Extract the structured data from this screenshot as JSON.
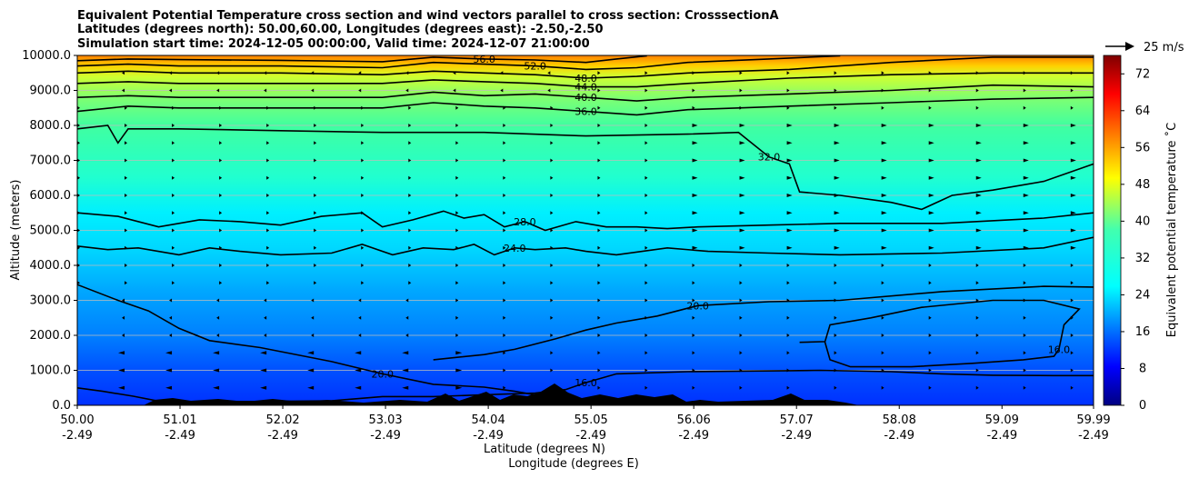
{
  "chart_data": {
    "type": "contourf",
    "title_lines": [
      "Equivalent Potential Temperature cross section and wind vectors parallel to cross section: CrosssectionA",
      "Latitudes (degrees north): 50.00,60.00, Longitudes (degrees east): -2.50,-2.50",
      "Simulation start time: 2024-12-05 00:00:00, Valid time: 2024-12-07 21:00:00"
    ],
    "ylabel": "Altitude (meters)",
    "xlabel_lines": [
      "Latitude (degrees N)",
      "Longitude (degrees E)"
    ],
    "ylim": [
      0,
      10000
    ],
    "xlim": [
      50.0,
      59.99
    ],
    "y_ticks": [
      {
        "value": 0,
        "label": "0.0"
      },
      {
        "value": 1000,
        "label": "1000.0"
      },
      {
        "value": 2000,
        "label": "2000.0"
      },
      {
        "value": 3000,
        "label": "3000.0"
      },
      {
        "value": 4000,
        "label": "4000.0"
      },
      {
        "value": 5000,
        "label": "5000.0"
      },
      {
        "value": 6000,
        "label": "6000.0"
      },
      {
        "value": 7000,
        "label": "7000.0"
      },
      {
        "value": 8000,
        "label": "8000.0"
      },
      {
        "value": 9000,
        "label": "9000.0"
      },
      {
        "value": 10000,
        "label": "10000.0"
      }
    ],
    "x_ticks": [
      {
        "lat": 50.0,
        "lat_label": "50.00",
        "lon_label": "-2.49"
      },
      {
        "lat": 51.01,
        "lat_label": "51.01",
        "lon_label": "-2.49"
      },
      {
        "lat": 52.02,
        "lat_label": "52.02",
        "lon_label": "-2.49"
      },
      {
        "lat": 53.03,
        "lat_label": "53.03",
        "lon_label": "-2.49"
      },
      {
        "lat": 54.04,
        "lat_label": "54.04",
        "lon_label": "-2.49"
      },
      {
        "lat": 55.05,
        "lat_label": "55.05",
        "lon_label": "-2.49"
      },
      {
        "lat": 56.06,
        "lat_label": "56.06",
        "lon_label": "-2.49"
      },
      {
        "lat": 57.07,
        "lat_label": "57.07",
        "lon_label": "-2.49"
      },
      {
        "lat": 58.08,
        "lat_label": "58.08",
        "lon_label": "-2.49"
      },
      {
        "lat": 59.09,
        "lat_label": "59.09",
        "lon_label": "-2.49"
      },
      {
        "lat": 59.99,
        "lat_label": "59.99",
        "lon_label": "-2.49"
      }
    ],
    "grid": "horizontal",
    "colorbar": {
      "label": "Equivalent potential temperature ˚C",
      "min": 0,
      "max": 76,
      "ticks": [
        0,
        8,
        16,
        24,
        32,
        40,
        48,
        56,
        64,
        72
      ],
      "colormap": "jet"
    },
    "quiver_key": {
      "label": "25 m/s"
    },
    "contours": [
      {
        "level": 16,
        "label": "16.0",
        "points": [
          [
            50.0,
            500
          ],
          [
            50.25,
            400
          ],
          [
            50.55,
            260
          ],
          [
            50.8,
            120
          ],
          [
            51.2,
            100
          ],
          [
            51.8,
            110
          ],
          [
            52.5,
            130
          ],
          [
            53.0,
            250
          ],
          [
            53.5,
            250
          ],
          [
            54.0,
            300
          ],
          [
            54.5,
            350
          ],
          [
            54.8,
            450
          ],
          [
            55.0,
            650
          ],
          [
            55.3,
            900
          ],
          [
            56.0,
            960
          ],
          [
            57.0,
            990
          ],
          [
            57.3,
            1000
          ],
          [
            58.0,
            960
          ],
          [
            58.5,
            900
          ],
          [
            59.0,
            860
          ],
          [
            59.6,
            850
          ],
          [
            59.99,
            850
          ]
        ]
      },
      {
        "level": 16,
        "label": "16.0",
        "points": [
          [
            57.1,
            1800
          ],
          [
            57.35,
            1820
          ],
          [
            57.4,
            2300
          ],
          [
            57.8,
            2500
          ],
          [
            58.3,
            2800
          ],
          [
            59.0,
            3000
          ],
          [
            59.5,
            3000
          ],
          [
            59.85,
            2750
          ],
          [
            59.7,
            2300
          ],
          [
            59.65,
            1600
          ],
          [
            59.6,
            1400
          ],
          [
            59.3,
            1300
          ],
          [
            58.8,
            1200
          ],
          [
            58.2,
            1100
          ],
          [
            57.6,
            1100
          ],
          [
            57.4,
            1300
          ],
          [
            57.35,
            1800
          ]
        ]
      },
      {
        "level": 20,
        "label": "20.0",
        "points": [
          [
            50.0,
            3450
          ],
          [
            50.4,
            3000
          ],
          [
            50.7,
            2700
          ],
          [
            51.0,
            2200
          ],
          [
            51.3,
            1850
          ],
          [
            51.8,
            1650
          ],
          [
            52.5,
            1250
          ],
          [
            53.0,
            900
          ],
          [
            53.5,
            600
          ],
          [
            54.0,
            520
          ],
          [
            54.3,
            400
          ],
          [
            54.6,
            250
          ],
          [
            54.9,
            80
          ]
        ]
      },
      {
        "level": 20,
        "label": "20.0",
        "points": [
          [
            53.5,
            1300
          ],
          [
            54.0,
            1450
          ],
          [
            54.3,
            1600
          ],
          [
            54.7,
            1900
          ],
          [
            55.0,
            2150
          ],
          [
            55.3,
            2350
          ],
          [
            55.7,
            2550
          ],
          [
            56.1,
            2850
          ],
          [
            56.8,
            2960
          ],
          [
            57.5,
            3000
          ],
          [
            58.5,
            3250
          ],
          [
            59.5,
            3400
          ],
          [
            59.99,
            3380
          ]
        ]
      },
      {
        "level": 24,
        "label": "24.0",
        "points": [
          [
            50.0,
            4550
          ],
          [
            50.3,
            4450
          ],
          [
            50.6,
            4500
          ],
          [
            51.0,
            4300
          ],
          [
            51.3,
            4500
          ],
          [
            51.6,
            4400
          ],
          [
            52.0,
            4300
          ],
          [
            52.5,
            4350
          ],
          [
            52.8,
            4600
          ],
          [
            53.1,
            4300
          ],
          [
            53.4,
            4500
          ],
          [
            53.7,
            4450
          ],
          [
            53.9,
            4600
          ],
          [
            54.1,
            4300
          ],
          [
            54.3,
            4500
          ],
          [
            54.5,
            4450
          ],
          [
            54.8,
            4500
          ],
          [
            55.0,
            4400
          ],
          [
            55.3,
            4300
          ],
          [
            55.8,
            4500
          ],
          [
            56.2,
            4400
          ],
          [
            56.8,
            4350
          ],
          [
            57.5,
            4300
          ],
          [
            58.5,
            4350
          ],
          [
            59.5,
            4500
          ],
          [
            59.99,
            4800
          ]
        ]
      },
      {
        "level": 28,
        "label": "28.0",
        "points": [
          [
            50.0,
            5500
          ],
          [
            50.4,
            5400
          ],
          [
            50.8,
            5100
          ],
          [
            51.2,
            5300
          ],
          [
            51.6,
            5250
          ],
          [
            52.0,
            5150
          ],
          [
            52.4,
            5400
          ],
          [
            52.8,
            5500
          ],
          [
            53.0,
            5100
          ],
          [
            53.3,
            5300
          ],
          [
            53.6,
            5550
          ],
          [
            53.8,
            5350
          ],
          [
            54.0,
            5450
          ],
          [
            54.2,
            5100
          ],
          [
            54.4,
            5250
          ],
          [
            54.6,
            5000
          ],
          [
            54.9,
            5250
          ],
          [
            55.2,
            5100
          ],
          [
            55.5,
            5100
          ],
          [
            55.8,
            5050
          ],
          [
            56.1,
            5100
          ],
          [
            56.8,
            5150
          ],
          [
            57.5,
            5200
          ],
          [
            58.5,
            5200
          ],
          [
            59.5,
            5350
          ],
          [
            59.99,
            5500
          ]
        ]
      },
      {
        "level": 32,
        "label": "32.0",
        "points": [
          [
            50.0,
            7900
          ],
          [
            50.3,
            8000
          ],
          [
            50.4,
            7500
          ],
          [
            50.5,
            7900
          ],
          [
            51.0,
            7900
          ],
          [
            52.0,
            7850
          ],
          [
            53.0,
            7800
          ],
          [
            54.0,
            7800
          ],
          [
            55.0,
            7700
          ],
          [
            56.0,
            7750
          ],
          [
            56.5,
            7800
          ],
          [
            56.8,
            7100
          ],
          [
            57.0,
            6900
          ],
          [
            57.1,
            6100
          ],
          [
            57.5,
            6000
          ],
          [
            58.0,
            5800
          ],
          [
            58.3,
            5600
          ],
          [
            58.6,
            6000
          ],
          [
            59.0,
            6150
          ],
          [
            59.5,
            6400
          ],
          [
            59.99,
            6900
          ]
        ]
      },
      {
        "level": 36,
        "label": "36.0",
        "points": [
          [
            50.0,
            8400
          ],
          [
            50.5,
            8550
          ],
          [
            51.0,
            8500
          ],
          [
            52.0,
            8500
          ],
          [
            53.0,
            8500
          ],
          [
            53.5,
            8650
          ],
          [
            54.0,
            8550
          ],
          [
            54.5,
            8500
          ],
          [
            55.0,
            8400
          ],
          [
            55.5,
            8300
          ],
          [
            56.0,
            8450
          ],
          [
            56.5,
            8500
          ],
          [
            57.0,
            8550
          ],
          [
            58.0,
            8650
          ],
          [
            59.0,
            8750
          ],
          [
            59.99,
            8800
          ]
        ]
      },
      {
        "level": 40,
        "label": "40.0",
        "points": [
          [
            50.0,
            8800
          ],
          [
            50.5,
            8850
          ],
          [
            51.0,
            8800
          ],
          [
            52.0,
            8800
          ],
          [
            53.0,
            8800
          ],
          [
            53.5,
            8950
          ],
          [
            54.0,
            8850
          ],
          [
            54.5,
            8900
          ],
          [
            55.0,
            8800
          ],
          [
            55.5,
            8700
          ],
          [
            56.0,
            8800
          ],
          [
            57.0,
            8900
          ],
          [
            58.0,
            9000
          ],
          [
            59.0,
            9150
          ],
          [
            59.99,
            9100
          ]
        ]
      },
      {
        "level": 44,
        "label": "44.0",
        "points": [
          [
            50.0,
            9200
          ],
          [
            50.5,
            9250
          ],
          [
            51.0,
            9200
          ],
          [
            52.0,
            9200
          ],
          [
            53.0,
            9200
          ],
          [
            53.5,
            9300
          ],
          [
            54.0,
            9250
          ],
          [
            54.5,
            9200
          ],
          [
            55.0,
            9100
          ],
          [
            55.5,
            9100
          ],
          [
            56.0,
            9200
          ],
          [
            57.0,
            9350
          ],
          [
            58.0,
            9450
          ],
          [
            59.0,
            9500
          ],
          [
            59.99,
            9500
          ]
        ]
      },
      {
        "level": 48,
        "label": "48.0",
        "points": [
          [
            50.0,
            9500
          ],
          [
            50.5,
            9550
          ],
          [
            51.0,
            9500
          ],
          [
            52.0,
            9500
          ],
          [
            53.0,
            9450
          ],
          [
            53.5,
            9550
          ],
          [
            54.0,
            9500
          ],
          [
            54.5,
            9450
          ],
          [
            55.0,
            9350
          ],
          [
            55.5,
            9400
          ],
          [
            56.0,
            9500
          ],
          [
            57.0,
            9600
          ],
          [
            58.0,
            9800
          ],
          [
            59.0,
            9950
          ],
          [
            59.99,
            9950
          ]
        ]
      },
      {
        "level": 52,
        "label": "52.0",
        "points": [
          [
            50.0,
            9700
          ],
          [
            50.5,
            9750
          ],
          [
            51.0,
            9700
          ],
          [
            52.0,
            9700
          ],
          [
            53.0,
            9650
          ],
          [
            53.5,
            9800
          ],
          [
            54.0,
            9750
          ],
          [
            54.5,
            9700
          ],
          [
            55.0,
            9600
          ],
          [
            55.5,
            9650
          ],
          [
            56.0,
            9800
          ],
          [
            56.8,
            9900
          ],
          [
            57.5,
            9990
          ]
        ]
      },
      {
        "level": 56,
        "label": "56.0",
        "points": [
          [
            50.0,
            9850
          ],
          [
            50.5,
            9900
          ],
          [
            51.0,
            9880
          ],
          [
            52.0,
            9860
          ],
          [
            53.0,
            9820
          ],
          [
            53.5,
            9950
          ],
          [
            54.0,
            9900
          ],
          [
            54.5,
            9870
          ],
          [
            55.0,
            9800
          ],
          [
            55.3,
            9900
          ],
          [
            55.6,
            9990
          ]
        ]
      }
    ]
  }
}
